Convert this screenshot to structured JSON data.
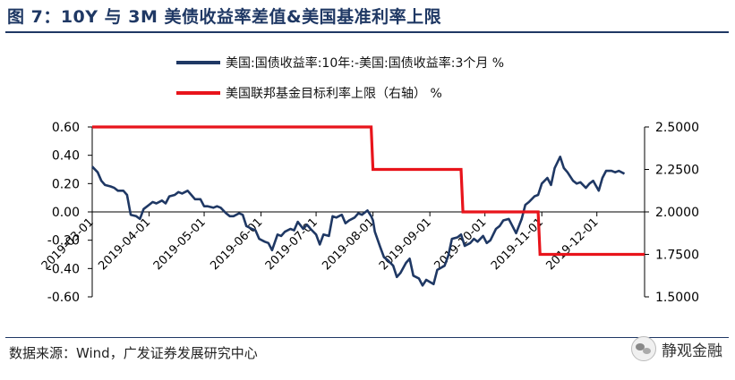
{
  "header": {
    "title": "图 7：10Y 与 3M 美债收益率差值&美国基准利率上限"
  },
  "footer": {
    "source": "数据来源：Wind，广发证券发展研究中心",
    "brand": "静观金融"
  },
  "colors": {
    "spread": "#1f3864",
    "fed": "#e8141b",
    "axis": "#000000",
    "heading": "#1f3864"
  },
  "chart_data": {
    "type": "line",
    "legend": [
      {
        "name": "美国:国债收益率:10年:-美国:国债收益率:3个月 %",
        "color": "#1f3864",
        "axis": "left"
      },
      {
        "name": "美国联邦基金目标利率上限（右轴） %",
        "color": "#e8141b",
        "axis": "right"
      }
    ],
    "x_ticks": [
      "2019-03-01",
      "2019-04-01",
      "2019-05-01",
      "2019-06-01",
      "2019-07-01",
      "2019-08-01",
      "2019-09-01",
      "2019-10-01",
      "2019-11-01",
      "2019-12-01"
    ],
    "x_range": [
      "2019-03-01",
      "2019-12-27"
    ],
    "y_left": {
      "range": [
        -0.6,
        0.6
      ],
      "ticks": [
        "0.60",
        "0.40",
        "0.20",
        "0.00",
        "-0.20",
        "-0.40",
        "-0.60"
      ]
    },
    "y_right": {
      "range": [
        1.5,
        2.5
      ],
      "ticks": [
        "2.5000",
        "2.2500",
        "2.0000",
        "1.7500",
        "1.5000"
      ]
    },
    "grid": false,
    "series": [
      {
        "name": "美国:国债收益率:10年:-美国:国债收益率:3个月 %",
        "axis": "left",
        "points": [
          [
            "2019-03-01",
            0.32
          ],
          [
            "2019-03-04",
            0.28
          ],
          [
            "2019-03-06",
            0.22
          ],
          [
            "2019-03-08",
            0.19
          ],
          [
            "2019-03-11",
            0.18
          ],
          [
            "2019-03-13",
            0.17
          ],
          [
            "2019-03-15",
            0.15
          ],
          [
            "2019-03-18",
            0.15
          ],
          [
            "2019-03-20",
            0.12
          ],
          [
            "2019-03-22",
            -0.02
          ],
          [
            "2019-03-25",
            -0.03
          ],
          [
            "2019-03-27",
            -0.05
          ],
          [
            "2019-03-29",
            0.02
          ],
          [
            "2019-04-01",
            0.05
          ],
          [
            "2019-04-03",
            0.07
          ],
          [
            "2019-04-05",
            0.06
          ],
          [
            "2019-04-08",
            0.08
          ],
          [
            "2019-04-10",
            0.06
          ],
          [
            "2019-04-12",
            0.11
          ],
          [
            "2019-04-15",
            0.12
          ],
          [
            "2019-04-17",
            0.14
          ],
          [
            "2019-04-19",
            0.13
          ],
          [
            "2019-04-22",
            0.15
          ],
          [
            "2019-04-24",
            0.12
          ],
          [
            "2019-04-26",
            0.09
          ],
          [
            "2019-04-29",
            0.09
          ],
          [
            "2019-05-01",
            0.04
          ],
          [
            "2019-05-03",
            0.04
          ],
          [
            "2019-05-06",
            0.03
          ],
          [
            "2019-05-08",
            0.04
          ],
          [
            "2019-05-10",
            0.03
          ],
          [
            "2019-05-13",
            -0.01
          ],
          [
            "2019-05-15",
            -0.03
          ],
          [
            "2019-05-17",
            -0.03
          ],
          [
            "2019-05-20",
            -0.01
          ],
          [
            "2019-05-22",
            -0.02
          ],
          [
            "2019-05-24",
            -0.1
          ],
          [
            "2019-05-27",
            -0.12
          ],
          [
            "2019-05-29",
            -0.13
          ],
          [
            "2019-05-31",
            -0.19
          ],
          [
            "2019-06-03",
            -0.21
          ],
          [
            "2019-06-05",
            -0.22
          ],
          [
            "2019-06-07",
            -0.27
          ],
          [
            "2019-06-10",
            -0.16
          ],
          [
            "2019-06-12",
            -0.17
          ],
          [
            "2019-06-14",
            -0.14
          ],
          [
            "2019-06-17",
            -0.12
          ],
          [
            "2019-06-19",
            -0.13
          ],
          [
            "2019-06-21",
            -0.07
          ],
          [
            "2019-06-24",
            -0.12
          ],
          [
            "2019-06-26",
            -0.09
          ],
          [
            "2019-06-28",
            -0.12
          ],
          [
            "2019-07-01",
            -0.16
          ],
          [
            "2019-07-03",
            -0.23
          ],
          [
            "2019-07-05",
            -0.16
          ],
          [
            "2019-07-08",
            -0.17
          ],
          [
            "2019-07-10",
            -0.03
          ],
          [
            "2019-07-12",
            -0.04
          ],
          [
            "2019-07-15",
            -0.02
          ],
          [
            "2019-07-17",
            -0.08
          ],
          [
            "2019-07-19",
            -0.06
          ],
          [
            "2019-07-22",
            -0.04
          ],
          [
            "2019-07-24",
            -0.01
          ],
          [
            "2019-07-26",
            -0.02
          ],
          [
            "2019-07-29",
            0.01
          ],
          [
            "2019-07-31",
            -0.03
          ],
          [
            "2019-08-01",
            -0.06
          ],
          [
            "2019-08-02",
            -0.14
          ],
          [
            "2019-08-05",
            -0.25
          ],
          [
            "2019-08-07",
            -0.32
          ],
          [
            "2019-08-09",
            -0.34
          ],
          [
            "2019-08-12",
            -0.38
          ],
          [
            "2019-08-14",
            -0.46
          ],
          [
            "2019-08-16",
            -0.43
          ],
          [
            "2019-08-19",
            -0.36
          ],
          [
            "2019-08-21",
            -0.33
          ],
          [
            "2019-08-23",
            -0.45
          ],
          [
            "2019-08-26",
            -0.47
          ],
          [
            "2019-08-28",
            -0.52
          ],
          [
            "2019-08-30",
            -0.48
          ],
          [
            "2019-09-03",
            -0.51
          ],
          [
            "2019-09-05",
            -0.41
          ],
          [
            "2019-09-09",
            -0.38
          ],
          [
            "2019-09-11",
            -0.31
          ],
          [
            "2019-09-13",
            -0.19
          ],
          [
            "2019-09-16",
            -0.18
          ],
          [
            "2019-09-18",
            -0.16
          ],
          [
            "2019-09-20",
            -0.24
          ],
          [
            "2019-09-23",
            -0.22
          ],
          [
            "2019-09-25",
            -0.19
          ],
          [
            "2019-09-27",
            -0.21
          ],
          [
            "2019-09-30",
            -0.17
          ],
          [
            "2019-10-02",
            -0.22
          ],
          [
            "2019-10-04",
            -0.2
          ],
          [
            "2019-10-07",
            -0.12
          ],
          [
            "2019-10-09",
            -0.1
          ],
          [
            "2019-10-11",
            -0.06
          ],
          [
            "2019-10-14",
            -0.05
          ],
          [
            "2019-10-16",
            -0.1
          ],
          [
            "2019-10-18",
            -0.15
          ],
          [
            "2019-10-21",
            -0.05
          ],
          [
            "2019-10-23",
            0.05
          ],
          [
            "2019-10-25",
            0.07
          ],
          [
            "2019-10-28",
            0.11
          ],
          [
            "2019-10-30",
            0.12
          ],
          [
            "2019-11-01",
            0.2
          ],
          [
            "2019-11-04",
            0.24
          ],
          [
            "2019-11-06",
            0.19
          ],
          [
            "2019-11-08",
            0.31
          ],
          [
            "2019-11-11",
            0.39
          ],
          [
            "2019-11-13",
            0.31
          ],
          [
            "2019-11-15",
            0.28
          ],
          [
            "2019-11-18",
            0.22
          ],
          [
            "2019-11-20",
            0.2
          ],
          [
            "2019-11-22",
            0.21
          ],
          [
            "2019-11-25",
            0.17
          ],
          [
            "2019-11-27",
            0.2
          ],
          [
            "2019-11-29",
            0.22
          ],
          [
            "2019-12-02",
            0.15
          ],
          [
            "2019-12-04",
            0.24
          ],
          [
            "2019-12-06",
            0.29
          ],
          [
            "2019-12-09",
            0.29
          ],
          [
            "2019-12-11",
            0.28
          ],
          [
            "2019-12-13",
            0.29
          ],
          [
            "2019-12-16",
            0.27
          ]
        ]
      },
      {
        "name": "美国联邦基金目标利率上限（右轴） %",
        "axis": "right",
        "points": [
          [
            "2019-03-01",
            2.5
          ],
          [
            "2019-07-31",
            2.5
          ],
          [
            "2019-08-01",
            2.25
          ],
          [
            "2019-09-18",
            2.25
          ],
          [
            "2019-09-19",
            2.0
          ],
          [
            "2019-10-30",
            2.0
          ],
          [
            "2019-10-31",
            1.75
          ],
          [
            "2019-12-27",
            1.75
          ]
        ]
      }
    ]
  }
}
